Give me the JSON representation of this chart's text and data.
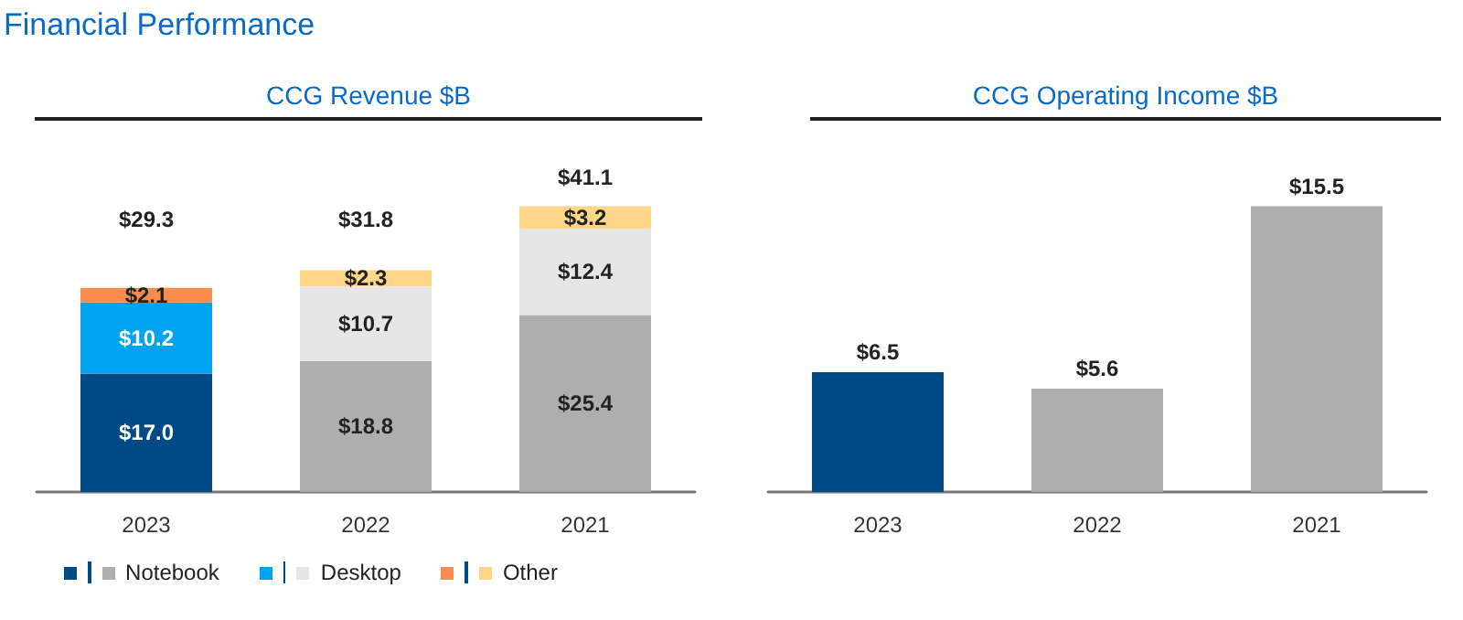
{
  "chart_data": [
    {
      "type": "bar",
      "title": "CCG Revenue $B",
      "annotations": [
        "Financial Performance"
      ],
      "categories": [
        "2023",
        "2022",
        "2021"
      ],
      "stacked": true,
      "legend": "bottom",
      "series": [
        {
          "name": "Notebook",
          "colors": [
            "#004a86",
            "#aeaeae",
            "#aeaeae"
          ],
          "values": [
            17.0,
            18.8,
            25.4
          ],
          "value_labels": [
            "$17.0",
            "$18.8",
            "$25.4"
          ]
        },
        {
          "name": "Desktop",
          "colors": [
            "#00a3f0",
            "#e6e6e6",
            "#e6e6e6"
          ],
          "values": [
            10.2,
            10.7,
            12.4
          ],
          "value_labels": [
            "$10.2",
            "$10.7",
            "$12.4"
          ]
        },
        {
          "name": "Other",
          "colors": [
            "#fb8c4f",
            "#fdd68a",
            "#fdd68a"
          ],
          "values": [
            2.1,
            2.3,
            3.2
          ],
          "value_labels": [
            "$2.1",
            "$2.3",
            "$3.2"
          ]
        }
      ],
      "totals": [
        "$29.3",
        "$31.8",
        "$41.1"
      ]
    },
    {
      "type": "bar",
      "title": "CCG Operating Income $B",
      "categories": [
        "2023",
        "2022",
        "2021"
      ],
      "values": [
        6.5,
        5.6,
        15.5
      ],
      "colors": [
        "#004a86",
        "#aeaeae",
        "#aeaeae"
      ],
      "value_labels": [
        "$6.5",
        "$5.6",
        "$15.5"
      ]
    }
  ]
}
